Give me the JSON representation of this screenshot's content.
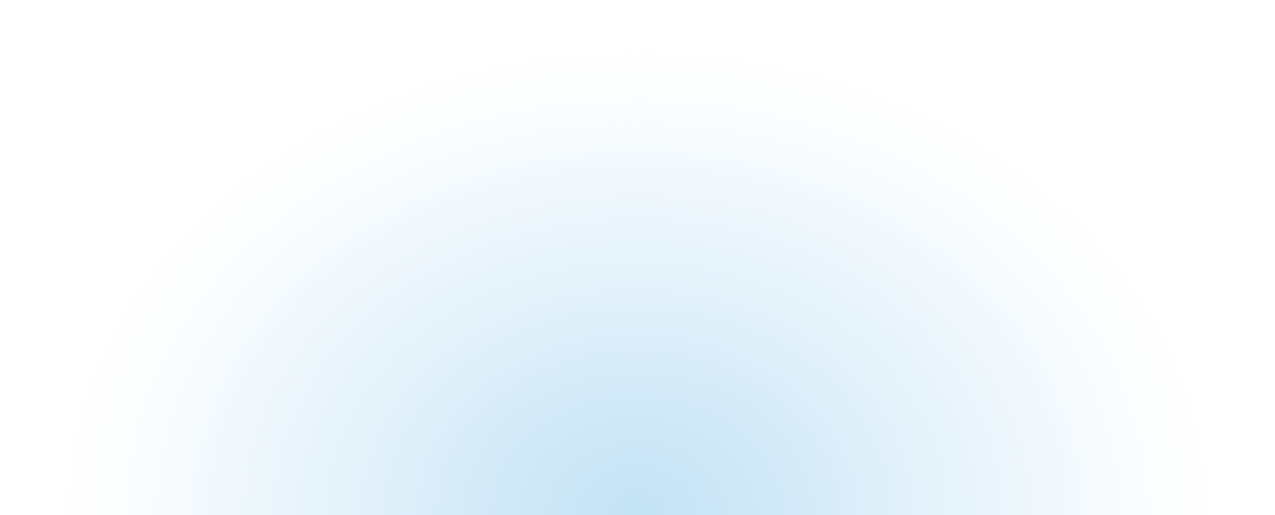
{
  "background": {
    "glow_color": "#c2e2f5",
    "base_color": "#ffffff"
  }
}
